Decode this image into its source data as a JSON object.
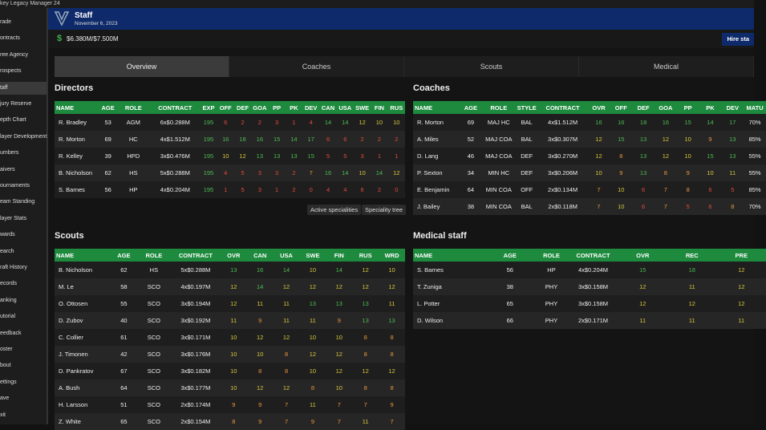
{
  "window_title": "key Legacy Manager 24",
  "sidebar": [
    "rade",
    "ontracts",
    "ree Agency",
    "rospects",
    "taff",
    "jury Reserve",
    "epth Chart",
    "layer Development",
    "umbers",
    "aivers",
    "ournaments",
    "eam Standing",
    "layer Stats",
    "wards",
    "earch",
    "raft History",
    "ecords",
    "anking",
    "utorial",
    "eedback",
    "oster",
    "bout",
    "ettings",
    "ave",
    "xit"
  ],
  "header": {
    "title": "Staff",
    "date": "November 6, 2023",
    "budget": "$6.380M/$7.500M",
    "hire_button": "Hire sta"
  },
  "tabs": [
    "Overview",
    "Coaches",
    "Scouts",
    "Medical"
  ],
  "directors_buttons": [
    "Active specialities",
    "Speciality tree"
  ],
  "tables": [
    {
      "title": "Directors",
      "columns": [
        "NAME",
        "AGE",
        "ROLE",
        "CONTRACT",
        "EXP",
        "OFF",
        "DEF",
        "GOA",
        "PP",
        "PK",
        "DEV",
        "CAN",
        "USA",
        "SWE",
        "FIN",
        "RUS"
      ],
      "rows": [
        [
          "R. Bradley",
          53,
          "AGM",
          "6x$0.288M",
          195,
          6,
          2,
          2,
          3,
          1,
          4,
          14,
          14,
          12,
          10,
          10
        ],
        [
          "R. Morton",
          69,
          "HC",
          "4x$1.512M",
          195,
          16,
          18,
          16,
          15,
          14,
          17,
          6,
          6,
          2,
          2,
          2
        ],
        [
          "R. Kelley",
          39,
          "HPD",
          "3x$0.476M",
          195,
          10,
          12,
          13,
          13,
          13,
          15,
          5,
          5,
          3,
          1,
          1
        ],
        [
          "B. Nicholson",
          62,
          "HS",
          "5x$0.288M",
          195,
          4,
          5,
          3,
          3,
          2,
          7,
          16,
          14,
          10,
          14,
          12
        ],
        [
          "S. Barnes",
          56,
          "HP",
          "4x$0.204M",
          195,
          1,
          5,
          3,
          1,
          2,
          0,
          4,
          4,
          6,
          2,
          0
        ]
      ]
    },
    {
      "title": "Coaches",
      "columns": [
        "NAME",
        "AGE",
        "ROLE",
        "STYLE",
        "CONTRACT",
        "OVR",
        "OFF",
        "DEF",
        "GOA",
        "PP",
        "PK",
        "DEV",
        "MATU"
      ],
      "rows": [
        [
          "R. Morton",
          69,
          "MAJ HC",
          "BAL",
          "4x$1.512M",
          16,
          16,
          18,
          16,
          15,
          14,
          17,
          "70%"
        ],
        [
          "A. Miles",
          52,
          "MAJ COA",
          "BAL",
          "3x$0.307M",
          12,
          15,
          13,
          12,
          10,
          9,
          13,
          "85%"
        ],
        [
          "D. Lang",
          46,
          "MAJ COA",
          "DEF",
          "3x$0.270M",
          12,
          8,
          13,
          12,
          10,
          15,
          13,
          "55%"
        ],
        [
          "P. Sexton",
          34,
          "MIN HC",
          "DEF",
          "3x$0.206M",
          10,
          9,
          13,
          8,
          9,
          10,
          11,
          "55%"
        ],
        [
          "E. Benjamin",
          64,
          "MIN COA",
          "OFF",
          "2x$0.134M",
          7,
          10,
          6,
          7,
          8,
          6,
          5,
          "85%"
        ],
        [
          "J. Bailey",
          38,
          "MIN COA",
          "BAL",
          "2x$0.118M",
          7,
          10,
          6,
          7,
          5,
          6,
          8,
          "70%"
        ]
      ]
    },
    {
      "title": "Scouts",
      "columns": [
        "NAME",
        "AGE",
        "ROLE",
        "CONTRACT",
        "OVR",
        "CAN",
        "USA",
        "SWE",
        "FIN",
        "RUS",
        "WRD"
      ],
      "rows": [
        [
          "B. Nicholson",
          62,
          "HS",
          "5x$0.288M",
          13,
          16,
          14,
          10,
          14,
          12,
          10
        ],
        [
          "M. Le",
          58,
          "SCO",
          "4x$0.197M",
          12,
          14,
          12,
          12,
          12,
          12,
          12
        ],
        [
          "O. Ottosen",
          55,
          "SCO",
          "3x$0.194M",
          12,
          11,
          11,
          13,
          13,
          13,
          11
        ],
        [
          "D. Zubov",
          40,
          "SCO",
          "3x$0.192M",
          11,
          9,
          11,
          11,
          9,
          13,
          13
        ],
        [
          "C. Collier",
          61,
          "SCO",
          "3x$0.171M",
          10,
          12,
          12,
          10,
          10,
          8,
          8
        ],
        [
          "J. Timonen",
          42,
          "SCO",
          "3x$0.176M",
          10,
          10,
          8,
          12,
          12,
          8,
          8
        ],
        [
          "D. Pankratov",
          67,
          "SCO",
          "3x$0.182M",
          10,
          8,
          8,
          10,
          12,
          12,
          12
        ],
        [
          "A. Bush",
          64,
          "SCO",
          "3x$0.177M",
          10,
          12,
          12,
          8,
          10,
          8,
          8
        ],
        [
          "H. Larsson",
          51,
          "SCO",
          "2x$0.174M",
          9,
          9,
          7,
          11,
          7,
          7,
          9
        ],
        [
          "Z. White",
          65,
          "SCO",
          "2x$0.154M",
          8,
          9,
          7,
          9,
          7,
          11,
          7
        ]
      ]
    },
    {
      "title": "Medical staff",
      "columns": [
        "NAME",
        "AGE",
        "ROLE",
        "CONTRACT",
        "OVR",
        "REC",
        "PRE"
      ],
      "rows": [
        [
          "S. Barnes",
          56,
          "HP",
          "4x$0.204M",
          15,
          18,
          12
        ],
        [
          "T. Zuniga",
          38,
          "PHY",
          "3x$0.158M",
          12,
          11,
          12
        ],
        [
          "L. Potter",
          65,
          "PHY",
          "3x$0.158M",
          12,
          12,
          12
        ],
        [
          "D. Wilson",
          66,
          "PHY",
          "2x$0.171M",
          11,
          11,
          11
        ]
      ]
    }
  ]
}
